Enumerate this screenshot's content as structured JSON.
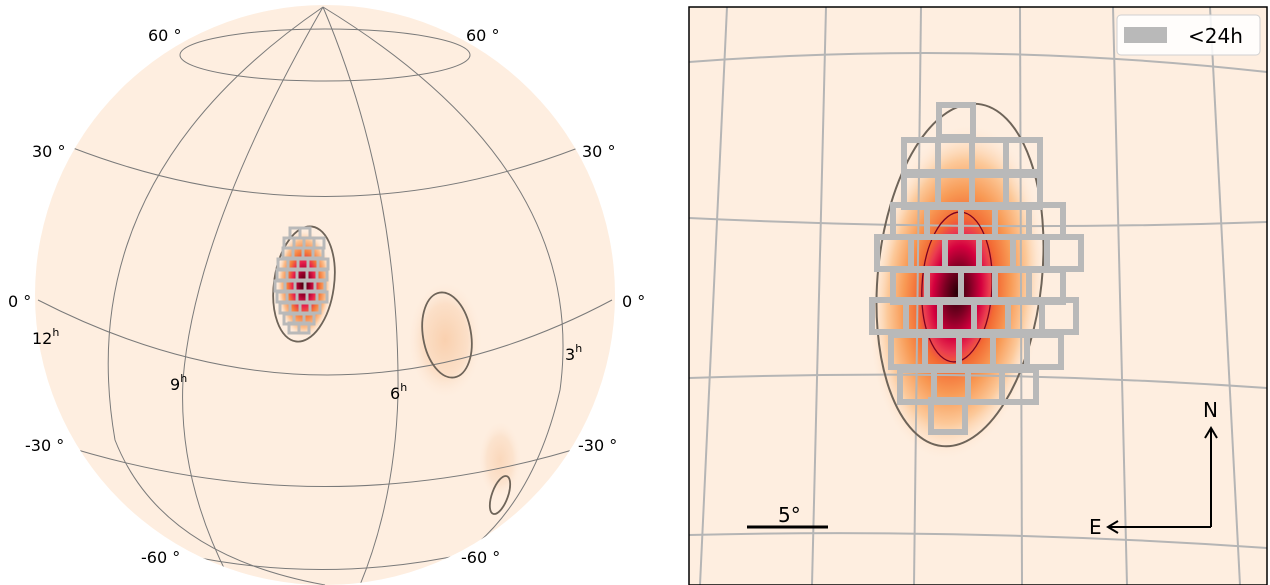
{
  "globe": {
    "dec_labels": [
      "60 °",
      "60 °",
      "30 °",
      "30 °",
      "0 °",
      "0 °",
      "-30 °",
      "-30 °",
      "-60 °",
      "-60 °"
    ],
    "ra_labels": [
      {
        "text": "12",
        "sup": "h"
      },
      {
        "text": "9",
        "sup": "h"
      },
      {
        "text": "6",
        "sup": "h"
      },
      {
        "text": "3",
        "sup": "h"
      }
    ]
  },
  "zoom": {
    "legend_label": "<24h",
    "scale_label": "5°",
    "north_label": "N",
    "east_label": "E"
  },
  "colors": {
    "background_prob": "#feeee0",
    "peak_prob": "#3d0009",
    "high_prob": "#d0003a",
    "mid_prob": "#f47a3a",
    "contour": "#6e6459",
    "tiles": "#b9b9b9",
    "graticule_globe": "#7a7a7a",
    "graticule_zoom": "#b5b5b5"
  }
}
